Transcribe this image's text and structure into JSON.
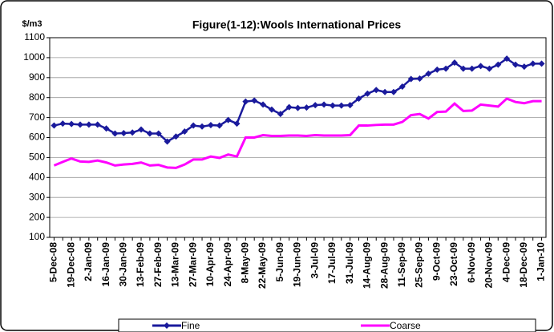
{
  "chart_data": {
    "type": "line",
    "title": "Figure(1-12):Wools International Prices",
    "y_axis_label": "$/m3",
    "categories": [
      "5-Dec-08",
      null,
      "19-Dec-08",
      null,
      "2-Jan-09",
      null,
      "16-Jan-09",
      null,
      "30-Jan-09",
      null,
      "13-Feb-09",
      null,
      "27-Feb-09",
      null,
      "13-Mar-09",
      null,
      "27-Mar-09",
      null,
      "10-Apr-09",
      null,
      "24-Apr-09",
      null,
      "8-May-09",
      null,
      "22-May-09",
      null,
      "5-Jun-09",
      null,
      "19-Jun-09",
      null,
      "3-Jul-09",
      null,
      "17-Jul-09",
      null,
      "31-Jul-09",
      null,
      "14-Aug-09",
      null,
      "28-Aug-09",
      null,
      "11-Sep-09",
      null,
      "25-Sep-09",
      null,
      "9-Oct-09",
      null,
      "23-Oct-09",
      null,
      "6-Nov-09",
      null,
      "20-Nov-09",
      null,
      "4-Dec-09",
      null,
      "18-Dec-09",
      null,
      "1-Jan-10"
    ],
    "series": [
      {
        "name": "Fine",
        "color": "#1a1a9c",
        "marker": "diamond",
        "values": [
          660,
          670,
          668,
          665,
          665,
          665,
          645,
          620,
          622,
          625,
          640,
          620,
          620,
          580,
          605,
          630,
          660,
          655,
          662,
          660,
          688,
          670,
          780,
          785,
          765,
          740,
          718,
          752,
          748,
          750,
          762,
          765,
          760,
          760,
          762,
          795,
          820,
          838,
          828,
          828,
          855,
          893,
          895,
          920,
          940,
          945,
          975,
          945,
          945,
          958,
          945,
          965,
          995,
          965,
          955,
          970,
          970
        ]
      },
      {
        "name": "Coarse",
        "color": "#ff00ff",
        "marker": "none",
        "values": [
          460,
          478,
          495,
          480,
          478,
          485,
          475,
          460,
          465,
          468,
          475,
          460,
          463,
          450,
          448,
          465,
          490,
          490,
          505,
          498,
          515,
          505,
          600,
          600,
          612,
          608,
          608,
          610,
          610,
          608,
          612,
          610,
          610,
          610,
          612,
          660,
          660,
          663,
          665,
          665,
          678,
          712,
          718,
          695,
          728,
          730,
          770,
          733,
          735,
          765,
          760,
          755,
          795,
          778,
          772,
          782,
          782
        ]
      }
    ],
    "ylim": [
      100,
      1100
    ],
    "yticks": [
      100,
      200,
      300,
      400,
      500,
      600,
      700,
      800,
      900,
      1000,
      1100
    ],
    "grid": true,
    "legend": "bottom"
  }
}
